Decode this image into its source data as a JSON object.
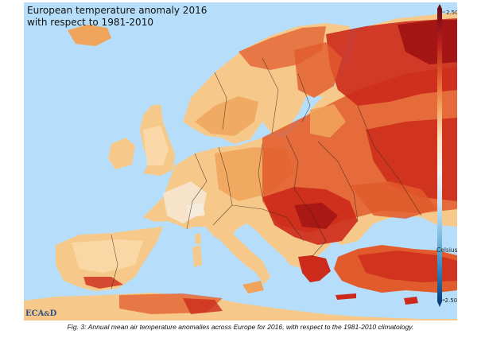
{
  "map": {
    "title_line1": "European temperature anomaly 2016",
    "title_line2": "with respect to 1981-2010",
    "logo_text_part1": "ECA",
    "logo_text_part2": "&",
    "logo_text_part3": "D",
    "colors": {
      "sea": "#b6defa",
      "land_base": "#f6c98a",
      "mild_warm": "#fbdcae",
      "near_zero": "#f6eee4",
      "warm": "#f0a35a",
      "hot": "#e25b2c",
      "very_hot": "#cc2a1b",
      "extreme": "#9c1012",
      "borders": "#3a2a1a",
      "logo": "#2f4f86"
    }
  },
  "color_scale": {
    "max_label": "2.50",
    "min_label": "-2.50",
    "unit_label": "Celsius",
    "stops": [
      "#6b0a14",
      "#b51e1e",
      "#e0562a",
      "#f3a25c",
      "#f9e3c4",
      "#f4f4f4",
      "#c9e3f3",
      "#7fbde1",
      "#2f86c2",
      "#0b3f7a"
    ]
  },
  "caption": "Fig. 3: Annual mean air temperature anomalies across Europe for 2016, with respect to the 1981-2010 climatology."
}
